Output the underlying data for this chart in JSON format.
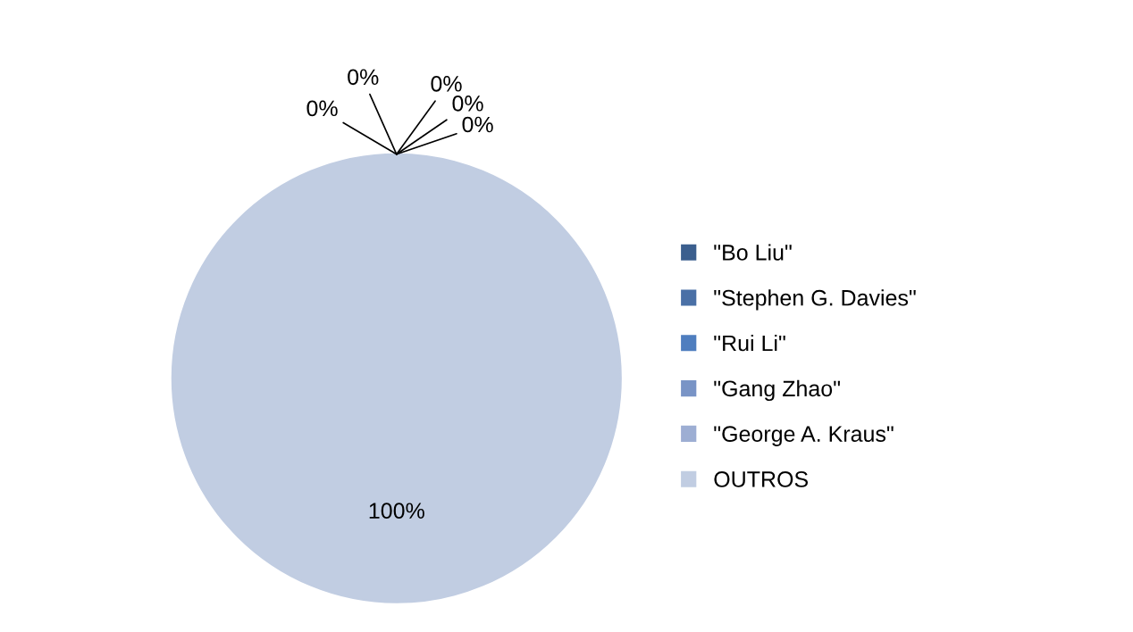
{
  "chart_data": {
    "type": "pie",
    "categories": [
      "\"Bo Liu\"",
      "\"Stephen G. Davies\"",
      "\"Rui Li\"",
      "\"Gang Zhao\"",
      "\"George A. Kraus\"",
      "OUTROS"
    ],
    "values": [
      0,
      0,
      0,
      0,
      0,
      100
    ],
    "value_labels": [
      "0%",
      "0%",
      "0%",
      "0%",
      "0%",
      "100%"
    ],
    "colors": [
      "#3b5f8e",
      "#4a70a6",
      "#4f7ebf",
      "#7994c6",
      "#9daed3",
      "#c1cde2"
    ],
    "legend": "right"
  }
}
